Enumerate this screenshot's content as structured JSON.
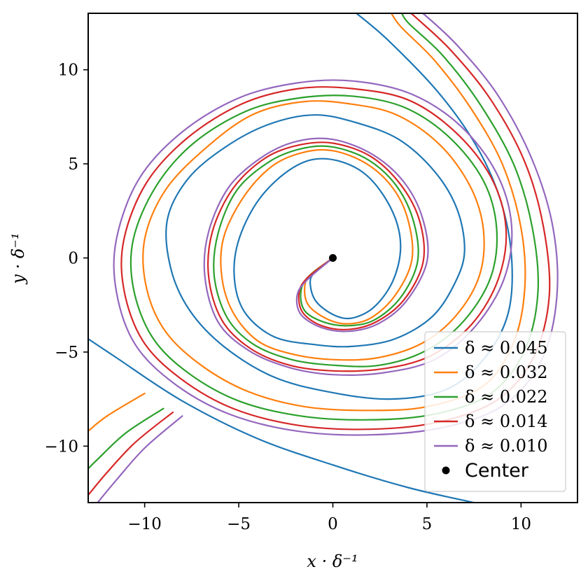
{
  "chart_data": {
    "type": "line",
    "xlabel": "x · δ⁻¹",
    "ylabel": "y · δ⁻¹",
    "xlim": [
      -13,
      13
    ],
    "ylim": [
      -13,
      13
    ],
    "x_ticks": [
      -10,
      -5,
      0,
      5,
      10
    ],
    "y_ticks": [
      -10,
      -5,
      0,
      5,
      10
    ],
    "x_tick_labels": [
      "−10",
      "−5",
      "0",
      "5",
      "10"
    ],
    "y_tick_labels": [
      "−10",
      "−5",
      "0",
      "5",
      "10"
    ],
    "grid": false,
    "legend_position": "lower-right",
    "series": [
      {
        "name": "δ ≈ 0.045",
        "color": "#1f77b4",
        "points": [
          [
            -1.0,
            -0.8
          ],
          [
            -1.2,
            -1.4
          ],
          [
            -0.9,
            -2.3
          ],
          [
            0.0,
            -3.0
          ],
          [
            1.0,
            -3.2
          ],
          [
            2.2,
            -2.6
          ],
          [
            3.2,
            -1.2
          ],
          [
            3.6,
            0.6
          ],
          [
            3.2,
            2.4
          ],
          [
            2.0,
            4.2
          ],
          [
            0.5,
            5.1
          ],
          [
            -1.2,
            5.2
          ],
          [
            -2.8,
            4.3
          ],
          [
            -4.2,
            2.7
          ],
          [
            -5.1,
            0.6
          ],
          [
            -5.2,
            -1.4
          ],
          [
            -4.6,
            -3.0
          ],
          [
            -3.1,
            -4.2
          ],
          [
            -1.0,
            -4.6
          ],
          [
            1.0,
            -4.7
          ],
          [
            3.3,
            -4.3
          ],
          [
            5.3,
            -3.1
          ],
          [
            6.5,
            -1.3
          ],
          [
            7.0,
            0.4
          ],
          [
            6.6,
            2.6
          ],
          [
            5.4,
            4.6
          ],
          [
            3.5,
            6.3
          ],
          [
            1.2,
            7.2
          ],
          [
            -1.0,
            7.6
          ],
          [
            -3.4,
            7.1
          ],
          [
            -5.7,
            5.9
          ],
          [
            -7.7,
            4.2
          ],
          [
            -8.8,
            2.0
          ],
          [
            -8.6,
            -0.6
          ],
          [
            -7.6,
            -2.8
          ],
          [
            -5.8,
            -4.7
          ],
          [
            -3.2,
            -6.3
          ],
          [
            -0.3,
            -7.1
          ],
          [
            3.0,
            -7.5
          ],
          [
            6.0,
            -7.0
          ],
          [
            8.0,
            -5.4
          ],
          [
            9.3,
            -3.0
          ],
          [
            9.5,
            0.0
          ],
          [
            8.9,
            3.1
          ],
          [
            7.6,
            6.0
          ],
          [
            5.6,
            8.8
          ],
          [
            2.9,
            11.6
          ],
          [
            1.0,
            13.2
          ]
        ],
        "ext": [
          [
            7.5,
            -13.0
          ],
          [
            4.0,
            -12.2
          ],
          [
            0.0,
            -11.0
          ],
          [
            -4.0,
            -9.6
          ],
          [
            -8.0,
            -7.6
          ],
          [
            -11.5,
            -5.3
          ],
          [
            -13.0,
            -4.3
          ]
        ]
      },
      {
        "name": "δ ≈ 0.032",
        "color": "#ff7f0e",
        "points": [
          [
            -1.2,
            -0.9
          ],
          [
            -1.5,
            -1.6
          ],
          [
            -1.3,
            -2.5
          ],
          [
            -0.4,
            -3.2
          ],
          [
            0.7,
            -3.5
          ],
          [
            2.0,
            -3.2
          ],
          [
            3.3,
            -2.0
          ],
          [
            4.2,
            -0.1
          ],
          [
            4.0,
            2.0
          ],
          [
            3.2,
            3.7
          ],
          [
            1.8,
            5.0
          ],
          [
            0.0,
            5.7
          ],
          [
            -1.6,
            5.6
          ],
          [
            -3.2,
            4.9
          ],
          [
            -4.7,
            3.3
          ],
          [
            -5.8,
            1.1
          ],
          [
            -5.9,
            -1.0
          ],
          [
            -5.3,
            -2.9
          ],
          [
            -4.0,
            -4.4
          ],
          [
            -2.2,
            -5.1
          ],
          [
            0.0,
            -5.4
          ],
          [
            2.4,
            -5.3
          ],
          [
            4.8,
            -4.5
          ],
          [
            6.6,
            -3.0
          ],
          [
            7.8,
            -0.9
          ],
          [
            8.0,
            1.5
          ],
          [
            7.3,
            3.8
          ],
          [
            5.7,
            6.0
          ],
          [
            3.4,
            7.6
          ],
          [
            0.8,
            8.2
          ],
          [
            -1.6,
            8.3
          ],
          [
            -4.3,
            7.6
          ],
          [
            -6.8,
            5.8
          ],
          [
            -8.9,
            3.6
          ],
          [
            -10.0,
            1.0
          ],
          [
            -9.9,
            -1.6
          ],
          [
            -8.9,
            -3.9
          ],
          [
            -7.0,
            -5.7
          ],
          [
            -4.5,
            -7.1
          ],
          [
            -1.5,
            -7.9
          ],
          [
            1.8,
            -8.1
          ],
          [
            5.0,
            -7.9
          ],
          [
            8.0,
            -6.8
          ],
          [
            9.6,
            -4.5
          ],
          [
            10.2,
            -1.6
          ],
          [
            10.0,
            1.6
          ],
          [
            9.0,
            5.0
          ],
          [
            7.3,
            8.0
          ],
          [
            5.4,
            10.5
          ],
          [
            3.6,
            12.3
          ],
          [
            3.0,
            13.2
          ]
        ],
        "ext": [
          [
            -10.0,
            -7.2
          ],
          [
            -12.0,
            -8.4
          ],
          [
            -13.0,
            -9.2
          ]
        ]
      },
      {
        "name": "δ ≈ 0.022",
        "color": "#2ca02c",
        "points": [
          [
            -1.3,
            -1.0
          ],
          [
            -1.7,
            -1.8
          ],
          [
            -1.5,
            -2.8
          ],
          [
            -0.5,
            -3.4
          ],
          [
            0.8,
            -3.6
          ],
          [
            2.2,
            -3.3
          ],
          [
            3.6,
            -2.1
          ],
          [
            4.5,
            -0.2
          ],
          [
            4.3,
            1.9
          ],
          [
            3.4,
            3.8
          ],
          [
            1.9,
            5.2
          ],
          [
            0.0,
            5.9
          ],
          [
            -1.7,
            5.8
          ],
          [
            -3.4,
            5.1
          ],
          [
            -5.1,
            3.6
          ],
          [
            -6.1,
            1.3
          ],
          [
            -6.3,
            -1.0
          ],
          [
            -5.6,
            -3.2
          ],
          [
            -4.2,
            -4.6
          ],
          [
            -2.2,
            -5.4
          ],
          [
            0.0,
            -5.7
          ],
          [
            2.5,
            -5.7
          ],
          [
            5.0,
            -4.9
          ],
          [
            7.0,
            -3.3
          ],
          [
            8.4,
            -1.0
          ],
          [
            8.7,
            1.6
          ],
          [
            8.0,
            4.1
          ],
          [
            6.2,
            6.4
          ],
          [
            3.8,
            8.0
          ],
          [
            1.0,
            8.6
          ],
          [
            -1.8,
            8.5
          ],
          [
            -4.6,
            7.8
          ],
          [
            -7.4,
            6.1
          ],
          [
            -9.4,
            3.8
          ],
          [
            -10.6,
            1.0
          ],
          [
            -10.6,
            -1.6
          ],
          [
            -9.6,
            -4.2
          ],
          [
            -7.7,
            -6.1
          ],
          [
            -5.0,
            -7.6
          ],
          [
            -1.7,
            -8.4
          ],
          [
            1.9,
            -8.6
          ],
          [
            5.4,
            -8.3
          ],
          [
            8.4,
            -7.2
          ],
          [
            10.2,
            -4.9
          ],
          [
            10.9,
            -1.8
          ],
          [
            10.6,
            1.6
          ],
          [
            9.6,
            5.0
          ],
          [
            7.8,
            8.2
          ],
          [
            5.8,
            10.8
          ],
          [
            4.0,
            12.5
          ],
          [
            3.6,
            13.2
          ]
        ],
        "ext": [
          [
            -9.0,
            -8.0
          ],
          [
            -11.0,
            -9.3
          ],
          [
            -12.5,
            -10.7
          ],
          [
            -13.0,
            -11.2
          ]
        ]
      },
      {
        "name": "δ ≈ 0.014",
        "color": "#d62728",
        "points": [
          [
            -1.4,
            -1.1
          ],
          [
            -1.8,
            -1.9
          ],
          [
            -1.6,
            -2.9
          ],
          [
            -0.6,
            -3.6
          ],
          [
            0.8,
            -3.8
          ],
          [
            2.3,
            -3.4
          ],
          [
            3.8,
            -2.2
          ],
          [
            4.8,
            -0.2
          ],
          [
            4.6,
            2.0
          ],
          [
            3.6,
            3.9
          ],
          [
            2.0,
            5.4
          ],
          [
            0.0,
            6.1
          ],
          [
            -1.8,
            6.0
          ],
          [
            -3.6,
            5.3
          ],
          [
            -5.3,
            3.7
          ],
          [
            -6.4,
            1.4
          ],
          [
            -6.6,
            -1.0
          ],
          [
            -5.9,
            -3.3
          ],
          [
            -4.4,
            -4.8
          ],
          [
            -2.3,
            -5.7
          ],
          [
            0.0,
            -6.0
          ],
          [
            2.6,
            -5.9
          ],
          [
            5.2,
            -5.2
          ],
          [
            7.4,
            -3.5
          ],
          [
            8.8,
            -1.1
          ],
          [
            9.2,
            1.6
          ],
          [
            8.4,
            4.3
          ],
          [
            6.5,
            6.7
          ],
          [
            4.0,
            8.4
          ],
          [
            1.0,
            9.0
          ],
          [
            -1.8,
            9.0
          ],
          [
            -4.8,
            8.2
          ],
          [
            -7.7,
            6.4
          ],
          [
            -9.9,
            4.0
          ],
          [
            -11.1,
            1.0
          ],
          [
            -11.1,
            -1.7
          ],
          [
            -10.1,
            -4.4
          ],
          [
            -8.1,
            -6.4
          ],
          [
            -5.3,
            -8.0
          ],
          [
            -1.8,
            -8.9
          ],
          [
            2.0,
            -9.1
          ],
          [
            5.7,
            -8.7
          ],
          [
            8.8,
            -7.5
          ],
          [
            10.7,
            -5.2
          ],
          [
            11.5,
            -2.0
          ],
          [
            11.2,
            1.6
          ],
          [
            10.2,
            5.1
          ],
          [
            8.4,
            8.4
          ],
          [
            6.3,
            11.0
          ],
          [
            4.5,
            12.7
          ],
          [
            3.9,
            13.2
          ]
        ],
        "ext": [
          [
            -8.5,
            -8.2
          ],
          [
            -10.5,
            -9.8
          ],
          [
            -12.0,
            -11.4
          ],
          [
            -13.0,
            -12.6
          ]
        ]
      },
      {
        "name": "δ ≈ 0.010",
        "color": "#9467bd",
        "points": [
          [
            -1.4,
            -1.2
          ],
          [
            -1.9,
            -2.0
          ],
          [
            -1.7,
            -3.0
          ],
          [
            -0.6,
            -3.7
          ],
          [
            0.8,
            -3.9
          ],
          [
            2.4,
            -3.5
          ],
          [
            3.9,
            -2.3
          ],
          [
            5.0,
            -0.2
          ],
          [
            4.8,
            2.0
          ],
          [
            3.8,
            4.0
          ],
          [
            2.1,
            5.5
          ],
          [
            0.0,
            6.3
          ],
          [
            -1.9,
            6.2
          ],
          [
            -3.7,
            5.4
          ],
          [
            -5.5,
            3.8
          ],
          [
            -6.6,
            1.4
          ],
          [
            -6.8,
            -1.0
          ],
          [
            -6.1,
            -3.4
          ],
          [
            -4.5,
            -4.9
          ],
          [
            -2.4,
            -5.8
          ],
          [
            0.0,
            -6.2
          ],
          [
            2.7,
            -6.1
          ],
          [
            5.4,
            -5.4
          ],
          [
            7.6,
            -3.6
          ],
          [
            9.1,
            -1.1
          ],
          [
            9.5,
            1.7
          ],
          [
            8.7,
            4.5
          ],
          [
            6.8,
            7.0
          ],
          [
            4.2,
            8.7
          ],
          [
            1.1,
            9.4
          ],
          [
            -1.9,
            9.3
          ],
          [
            -5.0,
            8.5
          ],
          [
            -8.0,
            6.7
          ],
          [
            -10.3,
            4.2
          ],
          [
            -11.5,
            1.0
          ],
          [
            -11.5,
            -1.8
          ],
          [
            -10.5,
            -4.6
          ],
          [
            -8.4,
            -6.7
          ],
          [
            -5.5,
            -8.3
          ],
          [
            -1.9,
            -9.2
          ],
          [
            2.0,
            -9.4
          ],
          [
            5.9,
            -9.0
          ],
          [
            9.1,
            -7.8
          ],
          [
            11.1,
            -5.4
          ],
          [
            11.9,
            -2.1
          ],
          [
            11.7,
            1.6
          ],
          [
            10.6,
            5.2
          ],
          [
            8.8,
            8.6
          ],
          [
            6.7,
            11.2
          ],
          [
            4.9,
            12.9
          ],
          [
            4.4,
            13.2
          ]
        ],
        "ext": [
          [
            -8.0,
            -8.4
          ],
          [
            -10.0,
            -10.1
          ],
          [
            -11.5,
            -11.8
          ],
          [
            -12.5,
            -13.0
          ]
        ]
      }
    ],
    "center": {
      "name": "Center",
      "x": 0,
      "y": 0,
      "color": "#000000"
    }
  }
}
